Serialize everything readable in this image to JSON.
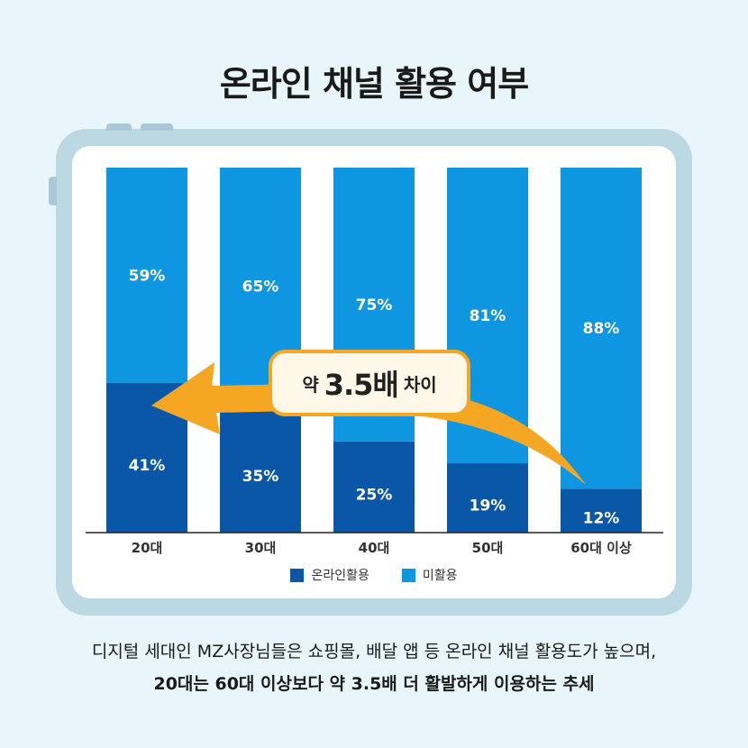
{
  "title": "온라인 채널 활용 여부",
  "callout": {
    "prefix": "약",
    "value": "3.5배",
    "suffix": "차이"
  },
  "caption": {
    "line1": "디지털 세대인 MZ사장님들은 쇼핑몰, 배달 앱 등 온라인 채널 활용도가 높으며,",
    "line2": "20대는 60대 이상보다 약 3.5배 더 활발하게 이용하는 추세"
  },
  "colors": {
    "online": "#0b57a7",
    "unused": "#0f96e0",
    "accent": "#f5a623",
    "axis": "#222222"
  },
  "chart_data": {
    "type": "bar",
    "stacked": true,
    "categories": [
      "20대",
      "30대",
      "40대",
      "50대",
      "60대 이상"
    ],
    "series": [
      {
        "name": "온라인활용",
        "values": [
          41,
          35,
          25,
          19,
          12
        ],
        "labels": [
          "41%",
          "35%",
          "25%",
          "19%",
          "12%"
        ]
      },
      {
        "name": "미활용",
        "values": [
          59,
          65,
          75,
          81,
          88
        ],
        "labels": [
          "59%",
          "65%",
          "75%",
          "81%",
          "88%"
        ]
      }
    ],
    "ylim": [
      0,
      100
    ],
    "grid": false,
    "legend": "bottom"
  }
}
